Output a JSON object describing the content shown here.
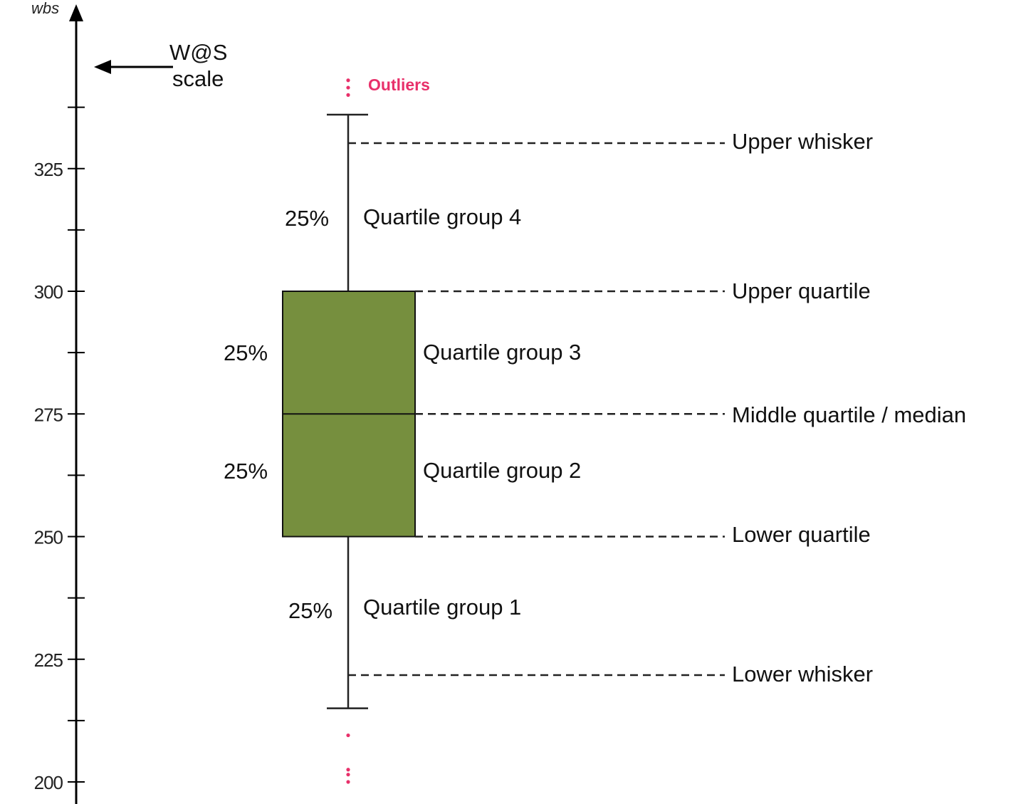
{
  "axis": {
    "unit_label": "wbs",
    "ticks": [
      {
        "value": 325,
        "label": "325"
      },
      {
        "value": 300,
        "label": "300"
      },
      {
        "value": 275,
        "label": "275"
      },
      {
        "value": 250,
        "label": "250"
      },
      {
        "value": 225,
        "label": "225"
      },
      {
        "value": 200,
        "label": "200"
      }
    ],
    "minor_ticks": [
      337.5,
      312.5,
      287.5,
      262.5,
      237.5,
      212.5
    ]
  },
  "scale_callout": {
    "line1": "W@S",
    "line2": "scale"
  },
  "box_plot": {
    "upper_whisker": 336,
    "upper_quartile": 300,
    "median": 275,
    "lower_quartile": 250,
    "lower_whisker": 215,
    "fill_color": "#768F3E",
    "upper_outliers": [
      343,
      341.5,
      340
    ],
    "lower_outliers": [
      209.5,
      202.5,
      201.5,
      200
    ]
  },
  "outliers": {
    "label": "Outliers",
    "color": "#E8306A"
  },
  "annotations": {
    "upper_whisker": "Upper whisker",
    "upper_quartile": "Upper quartile",
    "median": "Middle quartile / median",
    "lower_quartile": "Lower quartile",
    "lower_whisker": "Lower whisker"
  },
  "quartile_groups": [
    {
      "pct": "25%",
      "label": "Quartile group 4"
    },
    {
      "pct": "25%",
      "label": "Quartile group 3"
    },
    {
      "pct": "25%",
      "label": "Quartile group 2"
    },
    {
      "pct": "25%",
      "label": "Quartile group 1"
    }
  ]
}
